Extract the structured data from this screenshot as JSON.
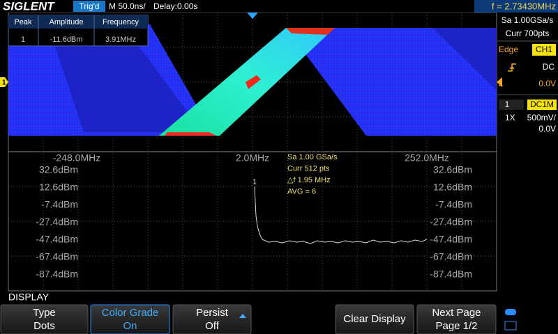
{
  "header": {
    "brand": "SIGLENT",
    "trigger_status": "Trig'd",
    "timebase": "M 50.0ns/",
    "delay": "Delay:0.00s",
    "frequency": "f = 2.73430MHz"
  },
  "channel_marker": "1",
  "peak_table": {
    "columns": [
      "Peak",
      "Amplitude",
      "Frequency"
    ],
    "rows": [
      [
        "1",
        "-11.6dBm",
        "3.91MHz"
      ]
    ]
  },
  "fft": {
    "freq_labels": [
      "-248.0MHz",
      "2.0MHz",
      "252.0MHz"
    ],
    "level_labels": [
      "32.6dBm",
      "12.6dBm",
      "-7.4dBm",
      "-27.4dBm",
      "-47.4dBm",
      "-67.4dBm",
      "-87.4dBm"
    ],
    "info": [
      "Sa 1.00 GSa/s",
      "Curr 512 pts",
      "△f 1.95 MHz",
      "AVG = 6"
    ],
    "peak_marker": "1"
  },
  "side_panel": {
    "sample_rate": "Sa 1.00GSa/s",
    "memory": "Curr 700pts",
    "trigger_type": "Edge",
    "trigger_source": "CH1",
    "trigger_coupling": "DC",
    "trigger_level_label": "L",
    "trigger_level": "0.0V",
    "channel": "1",
    "channel_coupling": "DC1M",
    "probe": "1X",
    "scale": "500mV/",
    "offset": "0.0V"
  },
  "menu": {
    "title": "DISPLAY",
    "buttons": [
      {
        "label": "Type",
        "value": "Dots"
      },
      {
        "label": "Color Grade",
        "value": "On"
      },
      {
        "label": "Persist",
        "value": "Off"
      },
      {
        "label": "Clear Display"
      },
      {
        "label": "Next Page",
        "value": "Page 1/2"
      }
    ]
  }
}
